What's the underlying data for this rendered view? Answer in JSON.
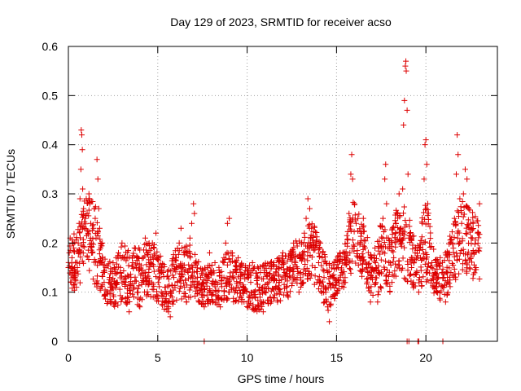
{
  "chart_data": {
    "type": "scatter",
    "title": "Day 129 of 2023, SRMTID for receiver acso",
    "xlabel": "GPS time / hours",
    "ylabel": "SRMTID / TECUs",
    "xlim": [
      0,
      24
    ],
    "ylim": [
      0,
      0.6
    ],
    "x_ticks": [
      0,
      5,
      10,
      15,
      20
    ],
    "y_ticks": [
      0,
      0.1,
      0.2,
      0.3,
      0.4,
      0.5,
      0.6
    ],
    "x_tick_labels": [
      "0",
      "5",
      "10",
      "15",
      "20"
    ],
    "y_tick_labels": [
      "0",
      "0.1",
      "0.2",
      "0.3",
      "0.4",
      "0.5",
      "0.6"
    ],
    "grid": true,
    "marker": "+",
    "colors": {
      "series": "#dd0000",
      "grid": "#a0a0a0",
      "axis": "#000000"
    },
    "series": [
      {
        "name": "SRMTID",
        "points": [
          [
            0.0,
            0.15
          ],
          [
            0.05,
            0.18
          ],
          [
            0.1,
            0.21
          ],
          [
            0.15,
            0.12
          ],
          [
            0.2,
            0.17
          ],
          [
            0.25,
            0.14
          ],
          [
            0.3,
            0.19
          ],
          [
            0.35,
            0.13
          ],
          [
            0.4,
            0.16
          ],
          [
            0.45,
            0.11
          ],
          [
            0.5,
            0.15
          ],
          [
            0.55,
            0.2
          ],
          [
            0.6,
            0.24
          ],
          [
            0.65,
            0.29
          ],
          [
            0.7,
            0.35
          ],
          [
            0.72,
            0.43
          ],
          [
            0.75,
            0.42
          ],
          [
            0.78,
            0.39
          ],
          [
            0.8,
            0.31
          ],
          [
            0.85,
            0.27
          ],
          [
            0.9,
            0.23
          ],
          [
            0.95,
            0.25
          ],
          [
            1.0,
            0.29
          ],
          [
            1.05,
            0.26
          ],
          [
            1.1,
            0.22
          ],
          [
            1.15,
            0.3
          ],
          [
            1.2,
            0.28
          ],
          [
            1.25,
            0.24
          ],
          [
            1.3,
            0.2
          ],
          [
            1.35,
            0.18
          ],
          [
            1.4,
            0.23
          ],
          [
            1.45,
            0.27
          ],
          [
            1.5,
            0.25
          ],
          [
            1.55,
            0.21
          ],
          [
            1.6,
            0.37
          ],
          [
            1.65,
            0.33
          ],
          [
            1.7,
            0.27
          ],
          [
            1.75,
            0.23
          ],
          [
            1.8,
            0.19
          ],
          [
            1.85,
            0.16
          ],
          [
            1.9,
            0.2
          ],
          [
            1.95,
            0.14
          ],
          [
            2.0,
            0.12
          ],
          [
            2.1,
            0.15
          ],
          [
            2.2,
            0.1
          ],
          [
            2.3,
            0.13
          ],
          [
            2.4,
            0.11
          ],
          [
            2.5,
            0.16
          ],
          [
            2.6,
            0.08
          ],
          [
            2.7,
            0.12
          ],
          [
            2.8,
            0.18
          ],
          [
            2.9,
            0.14
          ],
          [
            3.0,
            0.2
          ],
          [
            3.1,
            0.17
          ],
          [
            3.2,
            0.12
          ],
          [
            3.3,
            0.09
          ],
          [
            3.4,
            0.06
          ],
          [
            3.5,
            0.13
          ],
          [
            3.6,
            0.16
          ],
          [
            3.7,
            0.19
          ],
          [
            3.8,
            0.15
          ],
          [
            3.9,
            0.1
          ],
          [
            4.0,
            0.07
          ],
          [
            4.1,
            0.12
          ],
          [
            4.2,
            0.17
          ],
          [
            4.3,
            0.21
          ],
          [
            4.4,
            0.18
          ],
          [
            4.5,
            0.14
          ],
          [
            4.6,
            0.16
          ],
          [
            4.7,
            0.2
          ],
          [
            4.8,
            0.19
          ],
          [
            4.9,
            0.22
          ],
          [
            5.0,
            0.17
          ],
          [
            5.1,
            0.13
          ],
          [
            5.2,
            0.1
          ],
          [
            5.3,
            0.14
          ],
          [
            5.4,
            0.11
          ],
          [
            5.5,
            0.08
          ],
          [
            5.6,
            0.06
          ],
          [
            5.7,
            0.05
          ],
          [
            5.8,
            0.09
          ],
          [
            5.9,
            0.13
          ],
          [
            6.0,
            0.17
          ],
          [
            6.1,
            0.12
          ],
          [
            6.2,
            0.2
          ],
          [
            6.3,
            0.23
          ],
          [
            6.4,
            0.15
          ],
          [
            6.5,
            0.11
          ],
          [
            6.6,
            0.08
          ],
          [
            6.7,
            0.14
          ],
          [
            6.8,
            0.21
          ],
          [
            6.9,
            0.24
          ],
          [
            7.0,
            0.28
          ],
          [
            7.05,
            0.26
          ],
          [
            7.1,
            0.16
          ],
          [
            7.2,
            0.11
          ],
          [
            7.3,
            0.08
          ],
          [
            7.4,
            0.13
          ],
          [
            7.5,
            0.1
          ],
          [
            7.6,
            0.07
          ],
          [
            7.7,
            0.12
          ],
          [
            7.8,
            0.15
          ],
          [
            7.9,
            0.18
          ],
          [
            8.0,
            0.14
          ],
          [
            8.1,
            0.1
          ],
          [
            8.2,
            0.16
          ],
          [
            8.3,
            0.12
          ],
          [
            8.4,
            0.09
          ],
          [
            8.5,
            0.07
          ],
          [
            8.6,
            0.13
          ],
          [
            8.7,
            0.17
          ],
          [
            8.8,
            0.2
          ],
          [
            8.9,
            0.24
          ],
          [
            9.0,
            0.25
          ],
          [
            9.1,
            0.18
          ],
          [
            9.2,
            0.13
          ],
          [
            9.3,
            0.1
          ],
          [
            9.4,
            0.14
          ],
          [
            9.5,
            0.17
          ],
          [
            9.6,
            0.12
          ],
          [
            9.7,
            0.08
          ],
          [
            9.8,
            0.11
          ],
          [
            9.9,
            0.15
          ],
          [
            10.0,
            0.13
          ],
          [
            10.1,
            0.09
          ],
          [
            10.2,
            0.12
          ],
          [
            10.3,
            0.16
          ],
          [
            10.4,
            0.1
          ],
          [
            10.5,
            0.07
          ],
          [
            10.6,
            0.13
          ],
          [
            10.7,
            0.11
          ],
          [
            10.8,
            0.08
          ],
          [
            10.9,
            0.06
          ],
          [
            11.0,
            0.1
          ],
          [
            11.1,
            0.14
          ],
          [
            11.2,
            0.12
          ],
          [
            11.3,
            0.09
          ],
          [
            11.4,
            0.13
          ],
          [
            11.5,
            0.16
          ],
          [
            11.6,
            0.11
          ],
          [
            11.7,
            0.08
          ],
          [
            11.8,
            0.12
          ],
          [
            11.9,
            0.15
          ],
          [
            12.0,
            0.18
          ],
          [
            12.1,
            0.14
          ],
          [
            12.2,
            0.11
          ],
          [
            12.3,
            0.09
          ],
          [
            12.4,
            0.13
          ],
          [
            12.5,
            0.17
          ],
          [
            12.6,
            0.2
          ],
          [
            12.7,
            0.16
          ],
          [
            12.8,
            0.13
          ],
          [
            12.9,
            0.1
          ],
          [
            13.0,
            0.14
          ],
          [
            13.1,
            0.18
          ],
          [
            13.2,
            0.22
          ],
          [
            13.3,
            0.25
          ],
          [
            13.4,
            0.29
          ],
          [
            13.5,
            0.27
          ],
          [
            13.6,
            0.23
          ],
          [
            13.7,
            0.19
          ],
          [
            13.8,
            0.15
          ],
          [
            13.9,
            0.12
          ],
          [
            14.0,
            0.16
          ],
          [
            14.1,
            0.2
          ],
          [
            14.2,
            0.17
          ],
          [
            14.3,
            0.13
          ],
          [
            14.4,
            0.1
          ],
          [
            14.5,
            0.07
          ],
          [
            14.6,
            0.04
          ],
          [
            14.7,
            0.09
          ],
          [
            14.8,
            0.13
          ],
          [
            14.9,
            0.16
          ],
          [
            15.0,
            0.12
          ],
          [
            15.1,
            0.15
          ],
          [
            15.2,
            0.18
          ],
          [
            15.3,
            0.14
          ],
          [
            15.4,
            0.11
          ],
          [
            15.5,
            0.16
          ],
          [
            15.6,
            0.2
          ],
          [
            15.7,
            0.26
          ],
          [
            15.8,
            0.34
          ],
          [
            15.85,
            0.38
          ],
          [
            15.9,
            0.33
          ],
          [
            16.0,
            0.28
          ],
          [
            16.1,
            0.24
          ],
          [
            16.2,
            0.2
          ],
          [
            16.3,
            0.17
          ],
          [
            16.4,
            0.22
          ],
          [
            16.5,
            0.25
          ],
          [
            16.6,
            0.19
          ],
          [
            16.7,
            0.15
          ],
          [
            16.8,
            0.11
          ],
          [
            16.9,
            0.08
          ],
          [
            17.0,
            0.13
          ],
          [
            17.1,
            0.17
          ],
          [
            17.2,
            0.12
          ],
          [
            17.3,
            0.08
          ],
          [
            17.4,
            0.14
          ],
          [
            17.5,
            0.19
          ],
          [
            17.6,
            0.25
          ],
          [
            17.7,
            0.33
          ],
          [
            17.75,
            0.36
          ],
          [
            17.8,
            0.28
          ],
          [
            17.9,
            0.21
          ],
          [
            18.0,
            0.16
          ],
          [
            18.1,
            0.12
          ],
          [
            18.2,
            0.17
          ],
          [
            18.3,
            0.22
          ],
          [
            18.4,
            0.26
          ],
          [
            18.5,
            0.3
          ],
          [
            18.6,
            0.23
          ],
          [
            18.7,
            0.31
          ],
          [
            18.75,
            0.44
          ],
          [
            18.8,
            0.49
          ],
          [
            18.85,
            0.56
          ],
          [
            18.88,
            0.57
          ],
          [
            18.9,
            0.55
          ],
          [
            18.95,
            0.47
          ],
          [
            19.0,
            0.34
          ],
          [
            19.1,
            0.22
          ],
          [
            19.2,
            0.15
          ],
          [
            19.3,
            0.12
          ],
          [
            19.4,
            0.18
          ],
          [
            19.5,
            0.14
          ],
          [
            19.6,
            0.1
          ],
          [
            19.7,
            0.17
          ],
          [
            19.8,
            0.24
          ],
          [
            19.9,
            0.33
          ],
          [
            19.95,
            0.4
          ],
          [
            20.0,
            0.41
          ],
          [
            20.05,
            0.36
          ],
          [
            20.1,
            0.28
          ],
          [
            20.2,
            0.2
          ],
          [
            20.3,
            0.15
          ],
          [
            20.4,
            0.11
          ],
          [
            20.5,
            0.14
          ],
          [
            20.6,
            0.1
          ],
          [
            20.7,
            0.13
          ],
          [
            20.8,
            0.17
          ],
          [
            20.9,
            0.14
          ],
          [
            21.0,
            0.11
          ],
          [
            21.1,
            0.08
          ],
          [
            21.2,
            0.13
          ],
          [
            21.3,
            0.18
          ],
          [
            21.4,
            0.14
          ],
          [
            21.5,
            0.2
          ],
          [
            21.6,
            0.25
          ],
          [
            21.7,
            0.34
          ],
          [
            21.75,
            0.42
          ],
          [
            21.8,
            0.38
          ],
          [
            21.9,
            0.29
          ],
          [
            22.0,
            0.24
          ],
          [
            22.1,
            0.3
          ],
          [
            22.2,
            0.35
          ],
          [
            22.3,
            0.33
          ],
          [
            22.4,
            0.27
          ],
          [
            22.5,
            0.24
          ],
          [
            22.6,
            0.21
          ],
          [
            22.7,
            0.18
          ],
          [
            22.8,
            0.15
          ],
          [
            22.9,
            0.22
          ],
          [
            23.0,
            0.28
          ],
          [
            7.6,
            0.0
          ],
          [
            18.95,
            0.0
          ],
          [
            19.05,
            0.0
          ],
          [
            19.55,
            0.0
          ],
          [
            19.6,
            0.0
          ],
          [
            20.95,
            0.0
          ]
        ]
      }
    ],
    "density_envelope": [
      [
        0.0,
        0.2,
        0.11
      ],
      [
        0.5,
        0.23,
        0.1
      ],
      [
        1.0,
        0.3,
        0.16
      ],
      [
        1.5,
        0.28,
        0.11
      ],
      [
        2.0,
        0.17,
        0.08
      ],
      [
        2.5,
        0.16,
        0.07
      ],
      [
        3.0,
        0.2,
        0.07
      ],
      [
        3.5,
        0.19,
        0.08
      ],
      [
        4.0,
        0.19,
        0.07
      ],
      [
        4.5,
        0.21,
        0.09
      ],
      [
        5.0,
        0.2,
        0.08
      ],
      [
        5.5,
        0.15,
        0.06
      ],
      [
        6.0,
        0.19,
        0.08
      ],
      [
        6.5,
        0.2,
        0.08
      ],
      [
        7.0,
        0.2,
        0.08
      ],
      [
        7.5,
        0.15,
        0.07
      ],
      [
        8.0,
        0.16,
        0.08
      ],
      [
        8.5,
        0.15,
        0.07
      ],
      [
        9.0,
        0.2,
        0.08
      ],
      [
        9.5,
        0.17,
        0.08
      ],
      [
        10.0,
        0.16,
        0.07
      ],
      [
        10.5,
        0.15,
        0.06
      ],
      [
        11.0,
        0.16,
        0.07
      ],
      [
        11.5,
        0.17,
        0.08
      ],
      [
        12.0,
        0.18,
        0.08
      ],
      [
        12.5,
        0.2,
        0.1
      ],
      [
        13.0,
        0.21,
        0.1
      ],
      [
        13.5,
        0.26,
        0.13
      ],
      [
        14.0,
        0.21,
        0.1
      ],
      [
        14.5,
        0.16,
        0.06
      ],
      [
        15.0,
        0.17,
        0.09
      ],
      [
        15.5,
        0.2,
        0.12
      ],
      [
        16.0,
        0.3,
        0.15
      ],
      [
        16.5,
        0.25,
        0.12
      ],
      [
        17.0,
        0.17,
        0.08
      ],
      [
        17.5,
        0.25,
        0.1
      ],
      [
        18.0,
        0.21,
        0.1
      ],
      [
        18.5,
        0.3,
        0.14
      ],
      [
        19.0,
        0.26,
        0.12
      ],
      [
        19.5,
        0.19,
        0.1
      ],
      [
        20.0,
        0.3,
        0.12
      ],
      [
        20.5,
        0.17,
        0.09
      ],
      [
        21.0,
        0.17,
        0.08
      ],
      [
        21.5,
        0.24,
        0.11
      ],
      [
        22.0,
        0.29,
        0.14
      ],
      [
        22.5,
        0.27,
        0.13
      ],
      [
        23.0,
        0.24,
        0.12
      ]
    ]
  }
}
